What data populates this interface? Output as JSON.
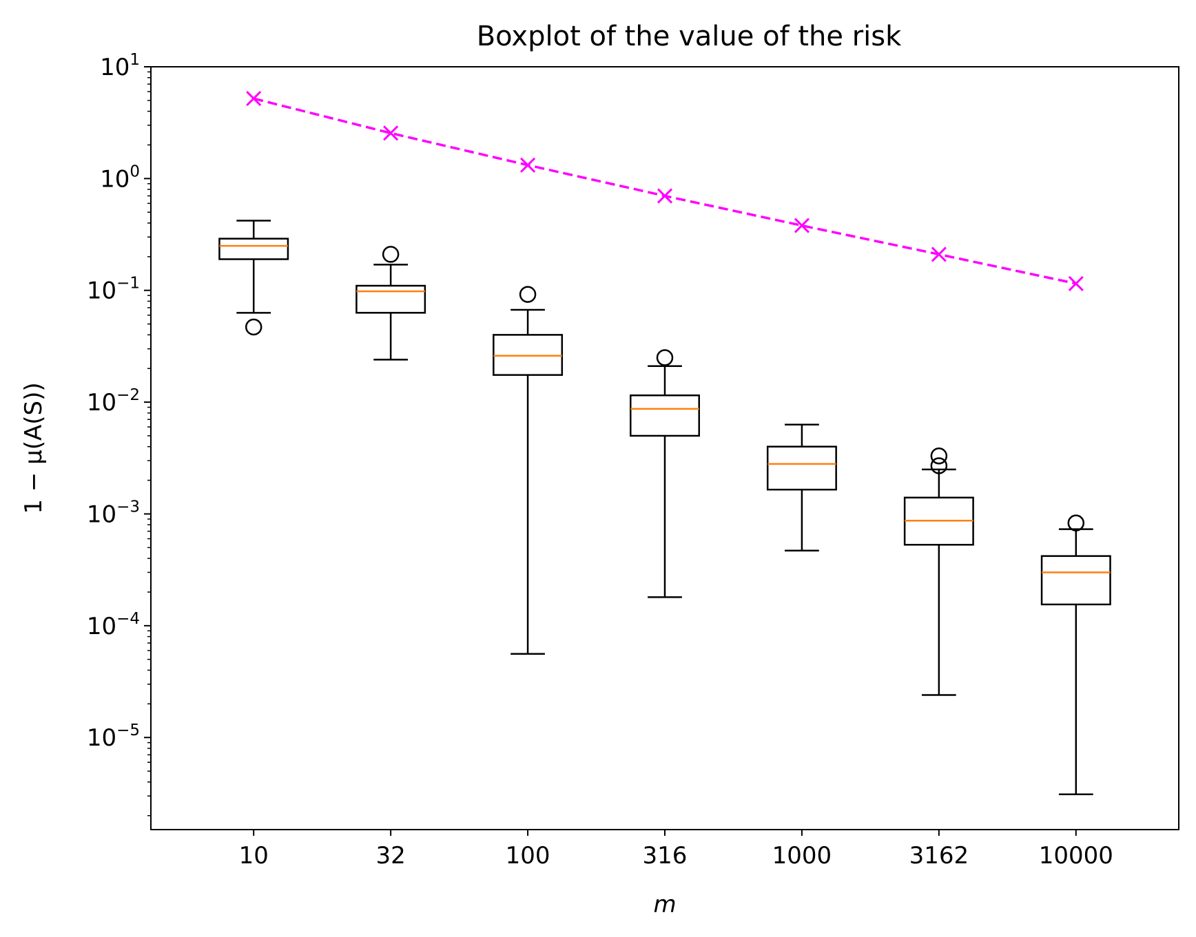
{
  "chart_data": {
    "type": "box",
    "title": "Boxplot of the value of the risk",
    "xlabel": "m",
    "ylabel": "1 − μ(A(S))",
    "yscale": "log",
    "ylim": [
      1.5e-06,
      10
    ],
    "grid": false,
    "categories": [
      "10",
      "32",
      "100",
      "316",
      "1000",
      "3162",
      "10000"
    ],
    "yticks": [
      {
        "base": "10",
        "exp": "1"
      },
      {
        "base": "10",
        "exp": "0"
      },
      {
        "base": "10",
        "exp": "−1"
      },
      {
        "base": "10",
        "exp": "−2"
      },
      {
        "base": "10",
        "exp": "−3"
      },
      {
        "base": "10",
        "exp": "−4"
      },
      {
        "base": "10",
        "exp": "−5"
      }
    ],
    "boxes": [
      {
        "whisker_low": 0.063,
        "q1": 0.19,
        "median": 0.25,
        "q3": 0.29,
        "whisker_high": 0.42,
        "outliers": [
          0.047
        ]
      },
      {
        "whisker_low": 0.024,
        "q1": 0.063,
        "median": 0.098,
        "q3": 0.11,
        "whisker_high": 0.17,
        "outliers": [
          0.21
        ]
      },
      {
        "whisker_low": 5.6e-05,
        "q1": 0.0175,
        "median": 0.026,
        "q3": 0.04,
        "whisker_high": 0.067,
        "outliers": [
          0.092
        ]
      },
      {
        "whisker_low": 0.00018,
        "q1": 0.005,
        "median": 0.0087,
        "q3": 0.0115,
        "whisker_high": 0.021,
        "outliers": [
          0.025
        ]
      },
      {
        "whisker_low": 0.00047,
        "q1": 0.00165,
        "median": 0.0028,
        "q3": 0.004,
        "whisker_high": 0.0063,
        "outliers": []
      },
      {
        "whisker_low": 2.4e-05,
        "q1": 0.00053,
        "median": 0.00087,
        "q3": 0.0014,
        "whisker_high": 0.0025,
        "outliers": [
          0.0027,
          0.0033
        ]
      },
      {
        "whisker_low": 3.1e-06,
        "q1": 0.000155,
        "median": 0.0003,
        "q3": 0.00042,
        "whisker_high": 0.00073,
        "outliers": [
          0.00083
        ]
      }
    ],
    "line": {
      "style": "dashed",
      "marker": "x",
      "color": "#ff00ff",
      "values": [
        5.2,
        2.55,
        1.32,
        0.7,
        0.38,
        0.21,
        0.115
      ]
    },
    "colors": {
      "box": "#000000",
      "median": "#ff7f0e",
      "line": "#ff00ff"
    }
  }
}
